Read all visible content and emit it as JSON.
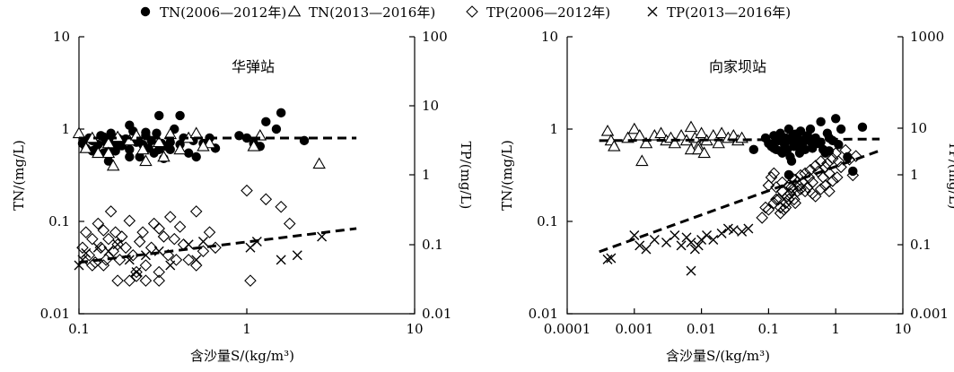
{
  "legend": [
    {
      "marker": "circle",
      "label": "TN(2006—2012年)"
    },
    {
      "marker": "triangle",
      "label": "TN(2013—2016年)"
    },
    {
      "marker": "diamond",
      "label": "TP(2006—2012年)"
    },
    {
      "marker": "cross",
      "label": "TP(2013—2016年)"
    }
  ],
  "chart_data": [
    {
      "type": "scatter",
      "title": "华弹站",
      "xlabel": "含沙量S/(kg/m³)",
      "ylabel_left": "TN/(mg/L)",
      "ylabel_right": "TP/(mg/L)",
      "x_scale": "log",
      "xlim": [
        0.1,
        10
      ],
      "xticks": [
        "0.1",
        "1",
        "10"
      ],
      "left_scale": "log",
      "left_ylim": [
        0.01,
        10
      ],
      "left_ticks": [
        "0.01",
        "0.1",
        "1",
        "10"
      ],
      "right_scale": "log",
      "right_ylim": [
        0.01,
        100
      ],
      "right_ticks": [
        "0.01",
        "0.1",
        "1",
        "10",
        "100"
      ],
      "series": [
        {
          "name": "TN(2006—2012年)",
          "axis": "left",
          "marker": "circle",
          "x": [
            0.105,
            0.11,
            0.115,
            0.12,
            0.125,
            0.13,
            0.135,
            0.14,
            0.145,
            0.15,
            0.155,
            0.16,
            0.165,
            0.17,
            0.175,
            0.18,
            0.19,
            0.2,
            0.2,
            0.21,
            0.22,
            0.23,
            0.24,
            0.25,
            0.26,
            0.27,
            0.28,
            0.29,
            0.3,
            0.31,
            0.32,
            0.33,
            0.35,
            0.37,
            0.4,
            0.42,
            0.45,
            0.48,
            0.5,
            0.55,
            0.6,
            0.65,
            0.9,
            1.0,
            1.1,
            1.3,
            1.5,
            1.6,
            1.2,
            2.2,
            0.12,
            0.14,
            0.16,
            0.18,
            0.2,
            0.25,
            0.3,
            0.35,
            0.4,
            0.15
          ],
          "y": [
            0.7,
            0.62,
            0.8,
            0.75,
            0.6,
            0.68,
            0.85,
            0.55,
            0.72,
            0.65,
            0.9,
            0.75,
            0.58,
            0.8,
            0.7,
            0.66,
            0.78,
            1.1,
            0.6,
            0.95,
            0.72,
            0.5,
            0.68,
            0.85,
            0.62,
            0.75,
            0.55,
            0.9,
            1.4,
            0.7,
            0.48,
            0.65,
            0.6,
            1.0,
            1.4,
            0.8,
            0.55,
            0.75,
            0.5,
            0.7,
            0.8,
            0.62,
            0.85,
            0.8,
            0.7,
            1.2,
            1.0,
            1.5,
            0.65,
            0.75,
            0.58,
            0.82,
            0.62,
            0.76,
            0.5,
            0.92,
            0.6,
            0.72,
            0.68,
            0.45
          ]
        },
        {
          "name": "TN(2013—2016年)",
          "axis": "left",
          "marker": "triangle",
          "x": [
            0.1,
            0.11,
            0.12,
            0.13,
            0.15,
            0.16,
            0.17,
            0.2,
            0.22,
            0.25,
            0.3,
            0.35,
            0.4,
            0.45,
            0.5,
            0.6,
            1.1,
            1.2,
            2.7,
            0.15,
            0.32,
            0.55,
            0.24
          ],
          "y": [
            0.9,
            0.62,
            0.8,
            0.55,
            0.7,
            0.4,
            0.82,
            0.75,
            0.85,
            0.45,
            0.72,
            0.88,
            0.6,
            0.8,
            0.9,
            0.7,
            0.65,
            0.85,
            0.42,
            0.55,
            0.5,
            0.65,
            0.6
          ]
        },
        {
          "name": "TP(2006—2012年)",
          "axis": "right",
          "marker": "diamond",
          "x": [
            0.105,
            0.11,
            0.115,
            0.12,
            0.125,
            0.13,
            0.135,
            0.14,
            0.145,
            0.15,
            0.155,
            0.16,
            0.165,
            0.17,
            0.175,
            0.18,
            0.19,
            0.2,
            0.21,
            0.22,
            0.23,
            0.24,
            0.25,
            0.27,
            0.28,
            0.3,
            0.32,
            0.34,
            0.35,
            0.37,
            0.4,
            0.42,
            0.45,
            0.5,
            0.55,
            0.6,
            0.65,
            1.0,
            1.05,
            1.3,
            1.6,
            1.8,
            0.14,
            0.17,
            0.2,
            0.25,
            0.3,
            0.38,
            0.12,
            0.5,
            0.22,
            0.3
          ],
          "y": [
            0.09,
            0.15,
            0.07,
            0.12,
            0.055,
            0.2,
            0.09,
            0.16,
            0.06,
            0.12,
            0.3,
            0.08,
            0.15,
            0.1,
            0.06,
            0.13,
            0.09,
            0.22,
            0.07,
            0.04,
            0.11,
            0.15,
            0.05,
            0.09,
            0.2,
            0.17,
            0.13,
            0.07,
            0.25,
            0.12,
            0.18,
            0.1,
            0.06,
            0.3,
            0.08,
            0.15,
            0.09,
            0.6,
            0.03,
            0.45,
            0.35,
            0.2,
            0.05,
            0.03,
            0.03,
            0.03,
            0.04,
            0.06,
            0.05,
            0.05,
            0.035,
            0.03
          ]
        },
        {
          "name": "TP(2013—2016年)",
          "axis": "right",
          "marker": "cross",
          "x": [
            0.1,
            0.105,
            0.11,
            0.13,
            0.15,
            0.17,
            0.2,
            0.22,
            0.25,
            0.3,
            0.35,
            0.45,
            0.5,
            0.55,
            1.05,
            1.15,
            1.6,
            2.0,
            2.8
          ],
          "y": [
            0.05,
            0.06,
            0.075,
            0.09,
            0.08,
            0.1,
            0.06,
            0.04,
            0.07,
            0.08,
            0.05,
            0.1,
            0.06,
            0.11,
            0.09,
            0.11,
            0.06,
            0.07,
            0.13
          ]
        }
      ],
      "trendlines": [
        {
          "axis": "left",
          "x": [
            0.1,
            4.5
          ],
          "y": [
            0.8,
            0.8
          ]
        },
        {
          "axis": "right",
          "x": [
            0.1,
            4.5
          ],
          "y": [
            0.055,
            0.17
          ]
        }
      ]
    },
    {
      "type": "scatter",
      "title": "向家坝站",
      "xlabel": "含沙量S/(kg/m³)",
      "ylabel_left": "TN/(mg/L)",
      "ylabel_right": "TP/(mg/L)",
      "x_scale": "log",
      "xlim": [
        0.0001,
        10
      ],
      "xticks": [
        "0.0001",
        "0.001",
        "0.01",
        "0.1",
        "1",
        "10"
      ],
      "left_scale": "log",
      "left_ylim": [
        0.01,
        10
      ],
      "left_ticks": [
        "0.01",
        "0.1",
        "1",
        "10"
      ],
      "right_scale": "log",
      "right_ylim": [
        0.001,
        1000
      ],
      "right_ticks": [
        "0.001",
        "0.1",
        "1",
        "10",
        "1000"
      ],
      "series": [
        {
          "name": "TN(2006—2012年)",
          "axis": "left",
          "marker": "circle",
          "x": [
            0.06,
            0.09,
            0.1,
            0.11,
            0.12,
            0.13,
            0.14,
            0.15,
            0.16,
            0.17,
            0.18,
            0.19,
            0.2,
            0.21,
            0.22,
            0.23,
            0.24,
            0.25,
            0.27,
            0.29,
            0.3,
            0.32,
            0.35,
            0.38,
            0.4,
            0.42,
            0.45,
            0.5,
            0.55,
            0.6,
            0.65,
            0.7,
            0.75,
            0.8,
            0.9,
            1.0,
            1.2,
            1.5,
            1.8,
            2.5,
            0.12,
            0.15,
            0.18,
            0.22,
            0.28,
            0.35,
            0.45,
            0.6,
            0.8,
            1.1,
            0.2,
            0.25,
            0.13,
            0.3,
            0.5
          ],
          "y": [
            0.6,
            0.8,
            0.7,
            0.65,
            0.85,
            0.6,
            0.75,
            0.9,
            0.55,
            0.7,
            0.8,
            0.6,
            1.0,
            0.5,
            0.75,
            0.85,
            0.65,
            0.7,
            0.8,
            0.55,
            0.95,
            0.7,
            0.6,
            0.85,
            0.75,
            1.0,
            0.65,
            0.8,
            0.7,
            1.2,
            0.6,
            0.55,
            0.9,
            0.8,
            0.75,
            1.3,
            1.0,
            0.5,
            0.35,
            1.05,
            0.62,
            0.58,
            0.72,
            0.45,
            0.68,
            0.78,
            0.62,
            0.72,
            0.58,
            0.68,
            0.32,
            0.88,
            0.75,
            0.6,
            0.7
          ]
        },
        {
          "name": "TN(2013—2016年)",
          "axis": "left",
          "marker": "triangle",
          "x": [
            0.0004,
            0.00045,
            0.0005,
            0.0008,
            0.001,
            0.0012,
            0.0015,
            0.002,
            0.0025,
            0.003,
            0.0035,
            0.004,
            0.005,
            0.006,
            0.007,
            0.008,
            0.009,
            0.01,
            0.012,
            0.015,
            0.018,
            0.02,
            0.025,
            0.03,
            0.035,
            0.04,
            0.0013,
            0.007,
            0.009,
            0.011
          ],
          "y": [
            0.95,
            0.75,
            0.65,
            0.8,
            1.0,
            0.85,
            0.7,
            0.85,
            0.9,
            0.75,
            0.8,
            0.7,
            0.85,
            0.75,
            1.05,
            0.8,
            0.65,
            0.9,
            0.75,
            0.85,
            0.7,
            0.9,
            0.8,
            0.85,
            0.75,
            0.8,
            0.45,
            0.6,
            0.6,
            0.55
          ]
        },
        {
          "name": "TP(2006—2012年)",
          "axis": "right",
          "marker": "diamond",
          "x": [
            0.08,
            0.09,
            0.1,
            0.11,
            0.12,
            0.13,
            0.14,
            0.15,
            0.16,
            0.17,
            0.18,
            0.19,
            0.2,
            0.21,
            0.22,
            0.23,
            0.24,
            0.25,
            0.27,
            0.28,
            0.3,
            0.32,
            0.35,
            0.38,
            0.4,
            0.42,
            0.45,
            0.5,
            0.55,
            0.6,
            0.65,
            0.7,
            0.75,
            0.8,
            0.9,
            1.0,
            1.1,
            1.2,
            1.4,
            1.6,
            1.8,
            2.0,
            0.1,
            0.12,
            0.15,
            0.18,
            0.2,
            0.25,
            0.3,
            0.35,
            0.5,
            0.7,
            0.9,
            0.16,
            0.22,
            0.13,
            0.45,
            0.6,
            0.8,
            1.05
          ],
          "y": [
            0.12,
            0.2,
            0.6,
            0.9,
            1.1,
            0.55,
            0.3,
            0.2,
            0.45,
            0.18,
            0.25,
            0.35,
            0.6,
            0.4,
            0.9,
            0.5,
            0.3,
            0.8,
            0.45,
            0.6,
            1.0,
            0.7,
            1.1,
            0.55,
            0.9,
            1.3,
            0.7,
            1.6,
            1.2,
            2.0,
            0.9,
            1.5,
            1.8,
            1.1,
            2.3,
            3.0,
            2.0,
            1.5,
            3.5,
            2.2,
            1.0,
            2.6,
            0.18,
            0.25,
            0.15,
            0.2,
            0.3,
            0.25,
            0.5,
            0.45,
            0.35,
            0.6,
            0.75,
            0.7,
            0.55,
            0.3,
            0.4,
            0.5,
            0.45,
            0.9
          ]
        },
        {
          "name": "TP(2013—2016年)",
          "axis": "right",
          "marker": "cross",
          "x": [
            0.0004,
            0.00045,
            0.001,
            0.0012,
            0.0015,
            0.002,
            0.003,
            0.004,
            0.005,
            0.006,
            0.007,
            0.008,
            0.009,
            0.01,
            0.012,
            0.015,
            0.02,
            0.025,
            0.03,
            0.04,
            0.05,
            0.007
          ],
          "y": [
            0.015,
            0.016,
            0.05,
            0.03,
            0.025,
            0.04,
            0.035,
            0.05,
            0.03,
            0.045,
            0.035,
            0.025,
            0.03,
            0.04,
            0.05,
            0.04,
            0.055,
            0.07,
            0.065,
            0.06,
            0.07,
            0.0085
          ]
        }
      ],
      "trendlines": [
        {
          "axis": "left",
          "x": [
            0.0003,
            4.5
          ],
          "y": [
            0.75,
            0.78
          ]
        },
        {
          "axis": "right",
          "x": [
            0.0003,
            4.5
          ],
          "y": [
            0.022,
            3.4
          ]
        }
      ]
    }
  ]
}
